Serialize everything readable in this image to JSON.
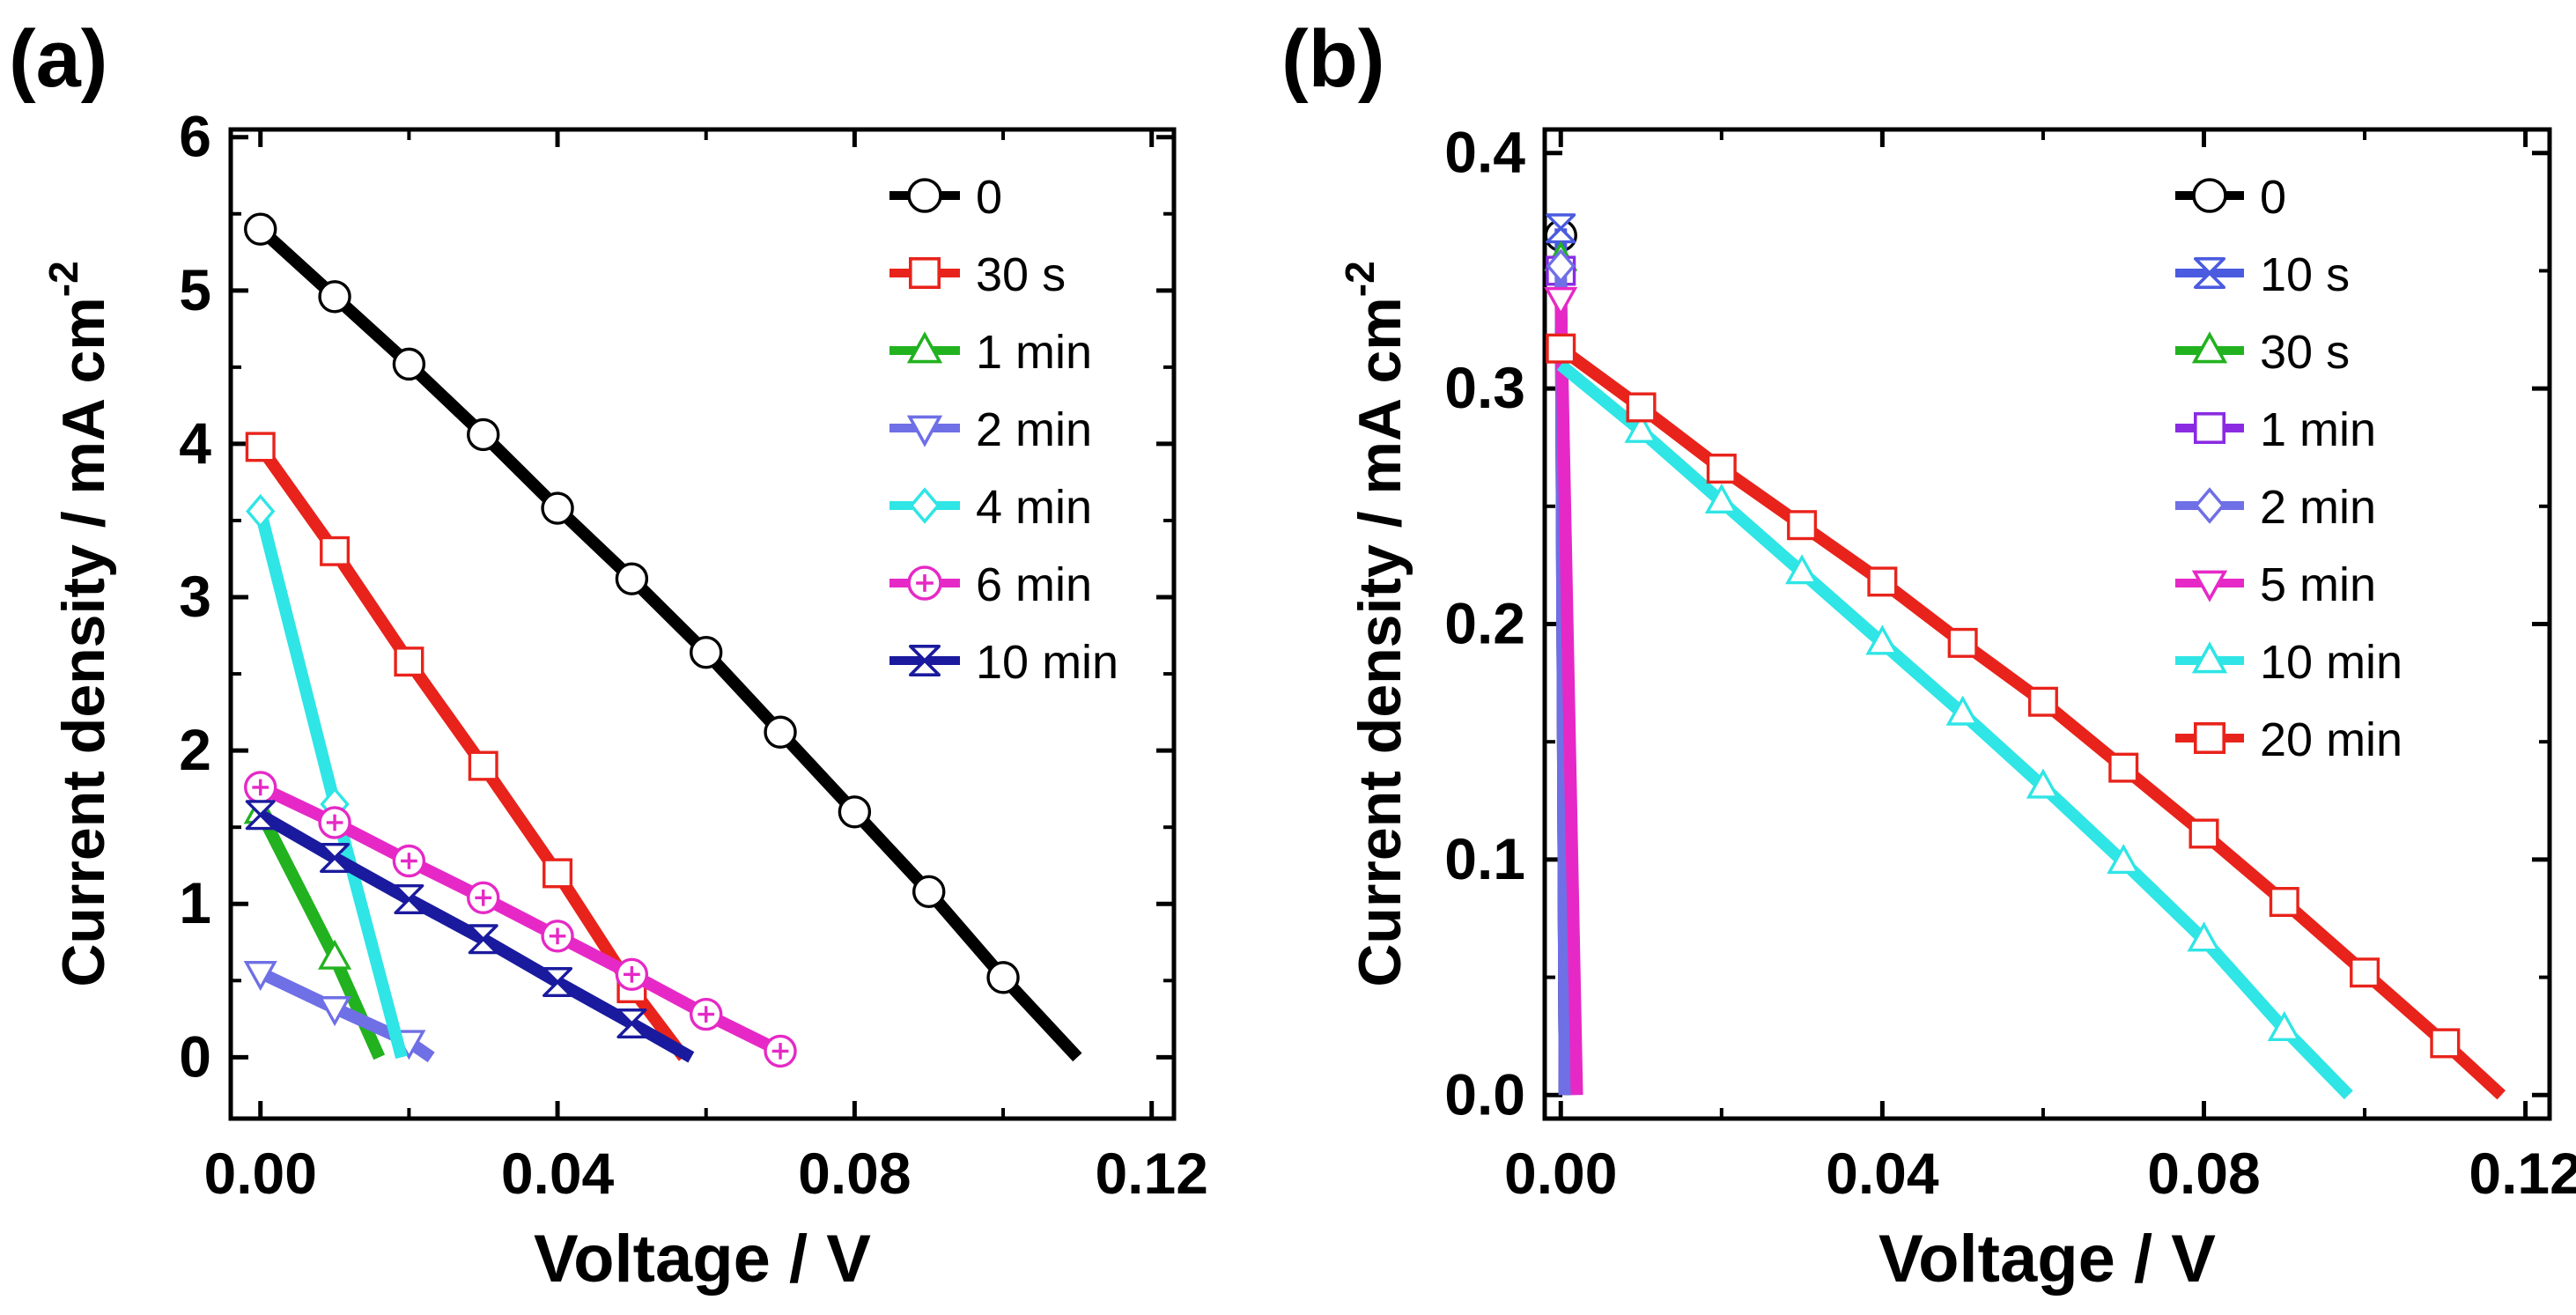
{
  "chart_data": [
    {
      "panel_label": "(a)",
      "type": "line",
      "title": "",
      "xlabel": "Voltage / V",
      "ylabel": "Current density / mA cm",
      "ylabel_sup": "-2",
      "xlim": [
        -0.004,
        0.123
      ],
      "ylim": [
        -0.4,
        6.05
      ],
      "xticks": [
        0.0,
        0.04,
        0.08,
        0.12
      ],
      "xtick_labels": [
        "0.00",
        "0.04",
        "0.08",
        "0.12"
      ],
      "yticks": [
        0,
        1,
        2,
        3,
        4,
        5,
        6
      ],
      "ytick_labels": [
        "0",
        "1",
        "2",
        "3",
        "4",
        "5",
        "6"
      ],
      "legend_position": "top-right",
      "series": [
        {
          "name": "0",
          "color": "#000000",
          "marker": "circle",
          "x": [
            0,
            0.01,
            0.02,
            0.03,
            0.04,
            0.05,
            0.06,
            0.07,
            0.08,
            0.09,
            0.1,
            0.11
          ],
          "y": [
            5.4,
            4.96,
            4.52,
            4.06,
            3.58,
            3.12,
            2.64,
            2.12,
            1.6,
            1.08,
            0.52,
            0.0
          ],
          "marker_x": [
            0,
            0.01,
            0.02,
            0.03,
            0.04,
            0.05,
            0.06,
            0.07,
            0.08,
            0.09,
            0.1
          ],
          "marker_y": [
            5.4,
            4.96,
            4.52,
            4.06,
            3.58,
            3.12,
            2.64,
            2.12,
            1.6,
            1.08,
            0.52
          ]
        },
        {
          "name": "30 s",
          "color": "#e8231b",
          "marker": "square",
          "x": [
            0,
            0.01,
            0.02,
            0.03,
            0.04,
            0.05,
            0.057
          ],
          "y": [
            3.98,
            3.3,
            2.58,
            1.9,
            1.2,
            0.45,
            0.0
          ],
          "marker_x": [
            0,
            0.01,
            0.02,
            0.03,
            0.04,
            0.05
          ],
          "marker_y": [
            3.98,
            3.3,
            2.58,
            1.9,
            1.2,
            0.45
          ]
        },
        {
          "name": "1 min",
          "color": "#22b21f",
          "marker": "triangle-up",
          "x": [
            0,
            0.01,
            0.016
          ],
          "y": [
            1.6,
            0.65,
            0.0
          ],
          "marker_x": [
            0,
            0.01
          ],
          "marker_y": [
            1.6,
            0.65
          ]
        },
        {
          "name": "2 min",
          "color": "#6f6fe6",
          "marker": "triangle-down",
          "x": [
            0,
            0.01,
            0.02,
            0.023
          ],
          "y": [
            0.55,
            0.32,
            0.1,
            0.0
          ],
          "marker_x": [
            0,
            0.01,
            0.02
          ],
          "marker_y": [
            0.55,
            0.32,
            0.1
          ]
        },
        {
          "name": "4 min",
          "color": "#2fe5e5",
          "marker": "diamond",
          "x": [
            0,
            0.01,
            0.019
          ],
          "y": [
            3.56,
            1.65,
            0.0
          ],
          "marker_x": [
            0,
            0.01
          ],
          "marker_y": [
            3.56,
            1.65
          ]
        },
        {
          "name": "6 min",
          "color": "#e629c6",
          "marker": "circle-plus",
          "x": [
            0,
            0.01,
            0.02,
            0.03,
            0.04,
            0.05,
            0.06,
            0.07
          ],
          "y": [
            1.76,
            1.53,
            1.28,
            1.04,
            0.79,
            0.54,
            0.28,
            0.04
          ],
          "marker_x": [
            0,
            0.01,
            0.02,
            0.03,
            0.04,
            0.05,
            0.06,
            0.07
          ],
          "marker_y": [
            1.76,
            1.53,
            1.28,
            1.04,
            0.79,
            0.54,
            0.28,
            0.04
          ]
        },
        {
          "name": "10 min",
          "color": "#1a1a9e",
          "marker": "hourglass",
          "x": [
            0,
            0.01,
            0.02,
            0.03,
            0.04,
            0.05,
            0.058
          ],
          "y": [
            1.58,
            1.3,
            1.03,
            0.77,
            0.49,
            0.22,
            0.0
          ],
          "marker_x": [
            0,
            0.01,
            0.02,
            0.03,
            0.04,
            0.05
          ],
          "marker_y": [
            1.58,
            1.3,
            1.03,
            0.77,
            0.49,
            0.22
          ]
        }
      ]
    },
    {
      "panel_label": "(b)",
      "type": "line",
      "title": "",
      "xlabel": "Voltage / V",
      "ylabel": "Current density / mA cm",
      "ylabel_sup": "-2",
      "xlim": [
        -0.002,
        0.123
      ],
      "ylim": [
        -0.01,
        0.41
      ],
      "xticks": [
        0.0,
        0.04,
        0.08,
        0.12
      ],
      "xtick_labels": [
        "0.00",
        "0.04",
        "0.08",
        "0.12"
      ],
      "yticks": [
        0.0,
        0.1,
        0.2,
        0.3,
        0.4
      ],
      "ytick_labels": [
        "0.0",
        "0.1",
        "0.2",
        "0.3",
        "0.4"
      ],
      "legend_position": "top-right",
      "series": [
        {
          "name": "0",
          "color": "#000000",
          "marker": "circle",
          "x": [
            0,
            0.0005
          ],
          "y": [
            0.365,
            0.0
          ],
          "marker_x": [
            0
          ],
          "marker_y": [
            0.365
          ]
        },
        {
          "name": "10 s",
          "color": "#4a5be0",
          "marker": "hourglass",
          "x": [
            0,
            0.0005
          ],
          "y": [
            0.368,
            0.0
          ],
          "marker_x": [
            0
          ],
          "marker_y": [
            0.368
          ]
        },
        {
          "name": "30 s",
          "color": "#22b21f",
          "marker": "triangle-up",
          "x": [
            0,
            0.0005
          ],
          "y": [
            0.355,
            0.0
          ],
          "marker_x": [
            0
          ],
          "marker_y": [
            0.355
          ]
        },
        {
          "name": "1 min",
          "color": "#8a2be2",
          "marker": "square",
          "x": [
            0,
            0.0005
          ],
          "y": [
            0.35,
            0.0
          ],
          "marker_x": [
            0
          ],
          "marker_y": [
            0.35
          ]
        },
        {
          "name": "2 min",
          "color": "#6f6fe6",
          "marker": "diamond",
          "x": [
            0,
            0.0005
          ],
          "y": [
            0.352,
            0.0
          ],
          "marker_x": [
            0
          ],
          "marker_y": [
            0.352
          ]
        },
        {
          "name": "5 min",
          "color": "#e629c6",
          "marker": "triangle-down",
          "x": [
            0,
            0.002
          ],
          "y": [
            0.338,
            0.0
          ],
          "marker_x": [
            0
          ],
          "marker_y": [
            0.338
          ]
        },
        {
          "name": "10 min",
          "color": "#2fe5e5",
          "marker": "triangle-up",
          "x": [
            0,
            0.01,
            0.02,
            0.03,
            0.04,
            0.05,
            0.06,
            0.07,
            0.08,
            0.09,
            0.098
          ],
          "y": [
            0.31,
            0.282,
            0.252,
            0.222,
            0.192,
            0.162,
            0.131,
            0.099,
            0.066,
            0.028,
            0.0
          ],
          "marker_x": [
            0.01,
            0.02,
            0.03,
            0.04,
            0.05,
            0.06,
            0.07,
            0.08,
            0.09
          ],
          "marker_y": [
            0.282,
            0.252,
            0.222,
            0.192,
            0.162,
            0.131,
            0.099,
            0.066,
            0.028
          ]
        },
        {
          "name": "20 min",
          "color": "#e8231b",
          "marker": "square",
          "x": [
            0,
            0.01,
            0.02,
            0.03,
            0.04,
            0.05,
            0.06,
            0.07,
            0.08,
            0.09,
            0.1,
            0.11,
            0.117
          ],
          "y": [
            0.317,
            0.292,
            0.266,
            0.242,
            0.218,
            0.192,
            0.167,
            0.139,
            0.111,
            0.082,
            0.052,
            0.022,
            0.0
          ],
          "marker_x": [
            0,
            0.01,
            0.02,
            0.03,
            0.04,
            0.05,
            0.06,
            0.07,
            0.08,
            0.09,
            0.1,
            0.11
          ],
          "marker_y": [
            0.317,
            0.292,
            0.266,
            0.242,
            0.218,
            0.192,
            0.167,
            0.139,
            0.111,
            0.082,
            0.052,
            0.022
          ]
        }
      ]
    }
  ]
}
